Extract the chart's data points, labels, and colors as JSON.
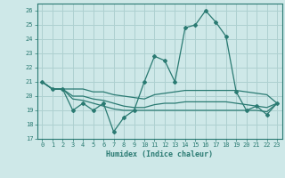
{
  "xlabel": "Humidex (Indice chaleur)",
  "xlim": [
    -0.5,
    23.5
  ],
  "ylim": [
    17,
    26.5
  ],
  "yticks": [
    17,
    18,
    19,
    20,
    21,
    22,
    23,
    24,
    25,
    26
  ],
  "xticks": [
    0,
    1,
    2,
    3,
    4,
    5,
    6,
    7,
    8,
    9,
    10,
    11,
    12,
    13,
    14,
    15,
    16,
    17,
    18,
    19,
    20,
    21,
    22,
    23
  ],
  "background_color": "#cee8e8",
  "grid_color": "#aed0d0",
  "line_color": "#2a7a72",
  "line1": [
    21.0,
    20.5,
    20.5,
    19.0,
    19.5,
    19.0,
    19.5,
    17.5,
    18.5,
    19.0,
    21.0,
    22.8,
    22.5,
    21.0,
    24.8,
    25.0,
    26.0,
    25.2,
    24.2,
    20.3,
    19.0,
    19.3,
    18.7,
    19.5
  ],
  "line2": [
    21.0,
    20.5,
    20.5,
    20.5,
    20.5,
    20.3,
    20.3,
    20.1,
    20.0,
    19.9,
    19.8,
    20.1,
    20.2,
    20.3,
    20.4,
    20.4,
    20.4,
    20.4,
    20.4,
    20.4,
    20.3,
    20.2,
    20.1,
    19.5
  ],
  "line3": [
    21.0,
    20.5,
    20.5,
    20.0,
    20.0,
    19.8,
    19.7,
    19.5,
    19.3,
    19.2,
    19.2,
    19.4,
    19.5,
    19.5,
    19.6,
    19.6,
    19.6,
    19.6,
    19.6,
    19.5,
    19.4,
    19.3,
    19.2,
    19.5
  ],
  "line4": [
    21.0,
    20.5,
    20.5,
    19.8,
    19.7,
    19.5,
    19.3,
    19.1,
    19.0,
    19.0,
    19.0,
    19.0,
    19.0,
    19.0,
    19.0,
    19.0,
    19.0,
    19.0,
    19.0,
    19.0,
    19.0,
    19.0,
    18.9,
    19.5
  ]
}
